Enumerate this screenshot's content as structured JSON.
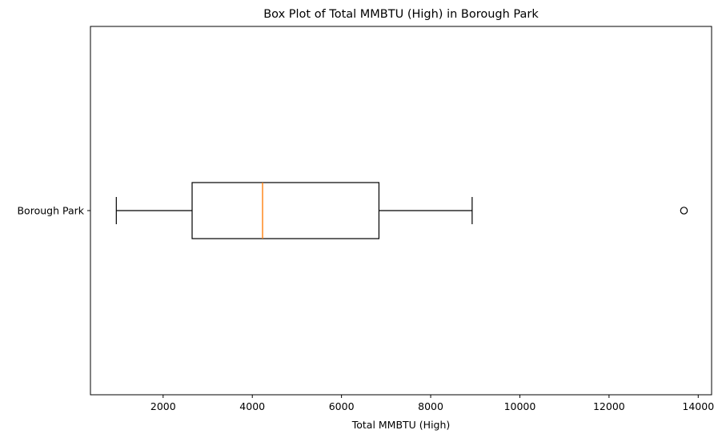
{
  "chart_data": {
    "type": "boxplot",
    "orientation": "horizontal",
    "title": "Box Plot of Total MMBTU (High) in Borough Park",
    "xlabel": "Total MMBTU (High)",
    "ylabel": "",
    "xlim": [
      370,
      14300
    ],
    "xticks": [
      2000,
      4000,
      6000,
      8000,
      10000,
      12000,
      14000
    ],
    "grid": false,
    "legend": "none",
    "categories": [
      "Borough Park"
    ],
    "series": [
      {
        "whisker_low": 950,
        "q1": 2650,
        "median": 4230,
        "q3": 6840,
        "whisker_high": 8930,
        "outliers": [
          13680
        ]
      }
    ],
    "colors": {
      "box": "#000000",
      "median": "#ff7f0e",
      "outlier": "#000000"
    }
  }
}
